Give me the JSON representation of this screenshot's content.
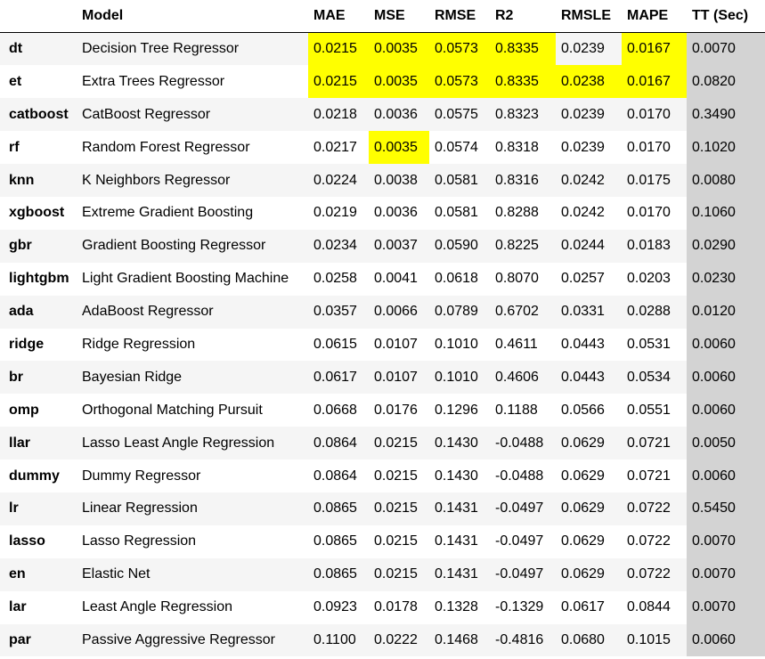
{
  "highlight_color": "#ffff00",
  "tt_column_color": "#d3d3d3",
  "columns": [
    "",
    "Model",
    "MAE",
    "MSE",
    "RMSE",
    "R2",
    "RMSLE",
    "MAPE",
    "TT (Sec)"
  ],
  "rows": [
    {
      "id": "dt",
      "model": "Decision Tree Regressor",
      "mae": "0.0215",
      "mse": "0.0035",
      "rmse": "0.0573",
      "r2": "0.8335",
      "rmsle": "0.0239",
      "mape": "0.0167",
      "tt": "0.0070",
      "highlight": [
        "mae",
        "mse",
        "rmse",
        "r2",
        "mape"
      ]
    },
    {
      "id": "et",
      "model": "Extra Trees Regressor",
      "mae": "0.0215",
      "mse": "0.0035",
      "rmse": "0.0573",
      "r2": "0.8335",
      "rmsle": "0.0238",
      "mape": "0.0167",
      "tt": "0.0820",
      "highlight": [
        "mae",
        "mse",
        "rmse",
        "r2",
        "rmsle",
        "mape"
      ]
    },
    {
      "id": "catboost",
      "model": "CatBoost Regressor",
      "mae": "0.0218",
      "mse": "0.0036",
      "rmse": "0.0575",
      "r2": "0.8323",
      "rmsle": "0.0239",
      "mape": "0.0170",
      "tt": "0.3490",
      "highlight": []
    },
    {
      "id": "rf",
      "model": "Random Forest Regressor",
      "mae": "0.0217",
      "mse": "0.0035",
      "rmse": "0.0574",
      "r2": "0.8318",
      "rmsle": "0.0239",
      "mape": "0.0170",
      "tt": "0.1020",
      "highlight": [
        "mse"
      ]
    },
    {
      "id": "knn",
      "model": "K Neighbors Regressor",
      "mae": "0.0224",
      "mse": "0.0038",
      "rmse": "0.0581",
      "r2": "0.8316",
      "rmsle": "0.0242",
      "mape": "0.0175",
      "tt": "0.0080",
      "highlight": []
    },
    {
      "id": "xgboost",
      "model": "Extreme Gradient Boosting",
      "mae": "0.0219",
      "mse": "0.0036",
      "rmse": "0.0581",
      "r2": "0.8288",
      "rmsle": "0.0242",
      "mape": "0.0170",
      "tt": "0.1060",
      "highlight": []
    },
    {
      "id": "gbr",
      "model": "Gradient Boosting Regressor",
      "mae": "0.0234",
      "mse": "0.0037",
      "rmse": "0.0590",
      "r2": "0.8225",
      "rmsle": "0.0244",
      "mape": "0.0183",
      "tt": "0.0290",
      "highlight": []
    },
    {
      "id": "lightgbm",
      "model": "Light Gradient Boosting Machine",
      "mae": "0.0258",
      "mse": "0.0041",
      "rmse": "0.0618",
      "r2": "0.8070",
      "rmsle": "0.0257",
      "mape": "0.0203",
      "tt": "0.0230",
      "highlight": []
    },
    {
      "id": "ada",
      "model": "AdaBoost Regressor",
      "mae": "0.0357",
      "mse": "0.0066",
      "rmse": "0.0789",
      "r2": "0.6702",
      "rmsle": "0.0331",
      "mape": "0.0288",
      "tt": "0.0120",
      "highlight": []
    },
    {
      "id": "ridge",
      "model": "Ridge Regression",
      "mae": "0.0615",
      "mse": "0.0107",
      "rmse": "0.1010",
      "r2": "0.4611",
      "rmsle": "0.0443",
      "mape": "0.0531",
      "tt": "0.0060",
      "highlight": []
    },
    {
      "id": "br",
      "model": "Bayesian Ridge",
      "mae": "0.0617",
      "mse": "0.0107",
      "rmse": "0.1010",
      "r2": "0.4606",
      "rmsle": "0.0443",
      "mape": "0.0534",
      "tt": "0.0060",
      "highlight": []
    },
    {
      "id": "omp",
      "model": "Orthogonal Matching Pursuit",
      "mae": "0.0668",
      "mse": "0.0176",
      "rmse": "0.1296",
      "r2": "0.1188",
      "rmsle": "0.0566",
      "mape": "0.0551",
      "tt": "0.0060",
      "highlight": []
    },
    {
      "id": "llar",
      "model": "Lasso Least Angle Regression",
      "mae": "0.0864",
      "mse": "0.0215",
      "rmse": "0.1430",
      "r2": "-0.0488",
      "rmsle": "0.0629",
      "mape": "0.0721",
      "tt": "0.0050",
      "highlight": []
    },
    {
      "id": "dummy",
      "model": "Dummy Regressor",
      "mae": "0.0864",
      "mse": "0.0215",
      "rmse": "0.1430",
      "r2": "-0.0488",
      "rmsle": "0.0629",
      "mape": "0.0721",
      "tt": "0.0060",
      "highlight": []
    },
    {
      "id": "lr",
      "model": "Linear Regression",
      "mae": "0.0865",
      "mse": "0.0215",
      "rmse": "0.1431",
      "r2": "-0.0497",
      "rmsle": "0.0629",
      "mape": "0.0722",
      "tt": "0.5450",
      "highlight": []
    },
    {
      "id": "lasso",
      "model": "Lasso Regression",
      "mae": "0.0865",
      "mse": "0.0215",
      "rmse": "0.1431",
      "r2": "-0.0497",
      "rmsle": "0.0629",
      "mape": "0.0722",
      "tt": "0.0070",
      "highlight": []
    },
    {
      "id": "en",
      "model": "Elastic Net",
      "mae": "0.0865",
      "mse": "0.0215",
      "rmse": "0.1431",
      "r2": "-0.0497",
      "rmsle": "0.0629",
      "mape": "0.0722",
      "tt": "0.0070",
      "highlight": []
    },
    {
      "id": "lar",
      "model": "Least Angle Regression",
      "mae": "0.0923",
      "mse": "0.0178",
      "rmse": "0.1328",
      "r2": "-0.1329",
      "rmsle": "0.0617",
      "mape": "0.0844",
      "tt": "0.0070",
      "highlight": []
    },
    {
      "id": "par",
      "model": "Passive Aggressive Regressor",
      "mae": "0.1100",
      "mse": "0.0222",
      "rmse": "0.1468",
      "r2": "-0.4816",
      "rmsle": "0.0680",
      "mape": "0.1015",
      "tt": "0.0060",
      "highlight": []
    }
  ]
}
